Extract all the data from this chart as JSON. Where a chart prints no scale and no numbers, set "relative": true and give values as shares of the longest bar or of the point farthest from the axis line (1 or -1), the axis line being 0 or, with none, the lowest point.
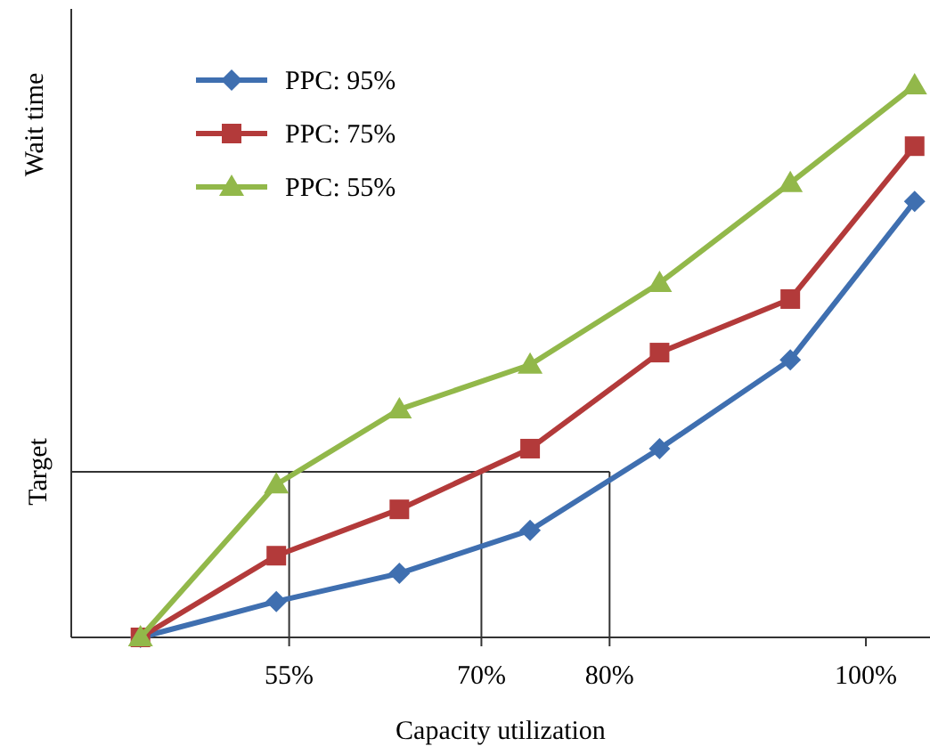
{
  "chart_data": {
    "type": "line",
    "xlabel": "Capacity utilization",
    "ylabel": "Wait time",
    "relative": true,
    "xlim": [
      38,
      105
    ],
    "xticks": [
      {
        "value": 55,
        "label": "55%"
      },
      {
        "value": 70,
        "label": "70%"
      },
      {
        "value": 80,
        "label": "80%"
      },
      {
        "value": 100,
        "label": "100%"
      }
    ],
    "series": [
      {
        "name": "PPC: 95%",
        "color": "#3f6fb0",
        "marker": "diamond",
        "x": [
          43.4,
          54,
          63.6,
          73.8,
          83.9,
          94.1,
          103.8
        ],
        "values": [
          0,
          0.065,
          0.116,
          0.194,
          0.342,
          0.503,
          0.79
        ]
      },
      {
        "name": "PPC: 75%",
        "color": "#b33a3a",
        "marker": "square",
        "x": [
          43.4,
          54,
          63.6,
          73.8,
          83.9,
          94.1,
          103.8
        ],
        "values": [
          0,
          0.148,
          0.232,
          0.342,
          0.516,
          0.613,
          0.89
        ]
      },
      {
        "name": "PPC: 55%",
        "color": "#92b84a",
        "marker": "triangle",
        "x": [
          43.4,
          54,
          63.6,
          73.8,
          83.9,
          94.1,
          103.8
        ],
        "values": [
          0,
          0.277,
          0.413,
          0.494,
          0.642,
          0.823,
          1
        ]
      }
    ],
    "ref_lines": [
      {
        "axis": "y",
        "value": 0.3,
        "label": "Target",
        "color": "#333333"
      },
      {
        "axis": "x",
        "value": 55,
        "color": "#333333"
      },
      {
        "axis": "x",
        "value": 70,
        "color": "#333333"
      },
      {
        "axis": "x",
        "value": 80,
        "color": "#333333"
      }
    ],
    "legend": "top left",
    "grid": false
  }
}
